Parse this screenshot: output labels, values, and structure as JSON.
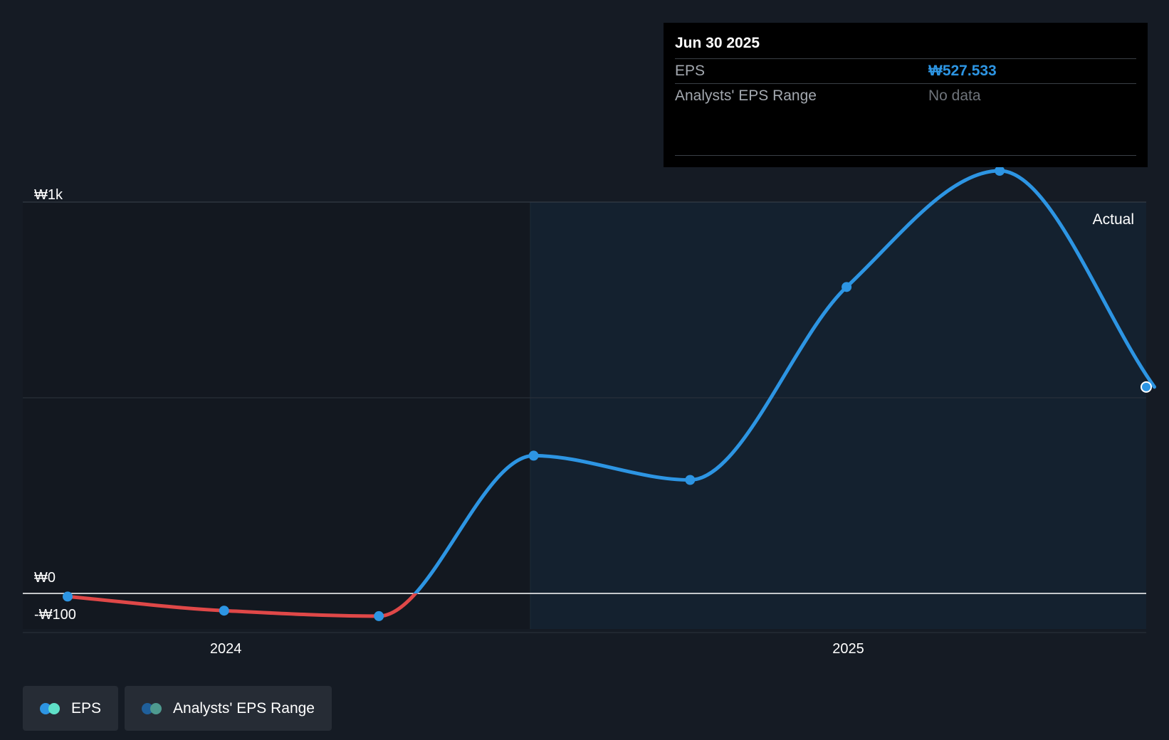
{
  "colors": {
    "background": "#151b24",
    "past_region": "#131820",
    "actual_region": "#14212f",
    "eps_line": "#2d95e3",
    "negative_line": "#e04848",
    "range_primary": "#1f5f9a",
    "range_secondary": "#4e9a8f"
  },
  "tooltip": {
    "date": "Jun 30 2025",
    "rows": [
      {
        "name": "EPS",
        "value": "₩527.533"
      },
      {
        "name": "Analysts' EPS Range",
        "value": "No data"
      }
    ]
  },
  "legend": {
    "items": [
      {
        "label": "EPS",
        "icon": "eps-legend-icon",
        "colors": [
          "#2d95e3",
          "#5fe0c8"
        ]
      },
      {
        "label": "Analysts' EPS Range",
        "icon": "range-legend-icon",
        "colors": [
          "#1f5f9a",
          "#4e9a8f"
        ]
      }
    ]
  },
  "chart_data": {
    "type": "line",
    "title": "",
    "xlabel": "",
    "ylabel": "",
    "x_start": "2023-09-30",
    "y_tick_labels": [
      {
        "value": 1000,
        "label": "₩1k"
      },
      {
        "value": 0,
        "label": "₩0"
      },
      {
        "value": -100,
        "label": "-₩100"
      }
    ],
    "x_tick_labels": [
      {
        "date": "2024-01-01",
        "label": "2024"
      },
      {
        "date": "2025-01-01",
        "label": "2025"
      }
    ],
    "ylim": [
      -100,
      1100
    ],
    "xlim": [
      "2023-09-30",
      "2025-06-30"
    ],
    "actual_region_label": "Actual",
    "actual_region_start": "2024-06-30",
    "grid": "horizontal",
    "series": [
      {
        "name": "EPS",
        "x": [
          "2023-09-30",
          "2023-12-31",
          "2024-03-31",
          "2024-06-30",
          "2024-09-30",
          "2024-12-31",
          "2025-03-31",
          "2025-06-30"
        ],
        "values": [
          -8,
          -44,
          -58,
          352,
          290,
          783,
          1080,
          527.533
        ]
      }
    ]
  }
}
